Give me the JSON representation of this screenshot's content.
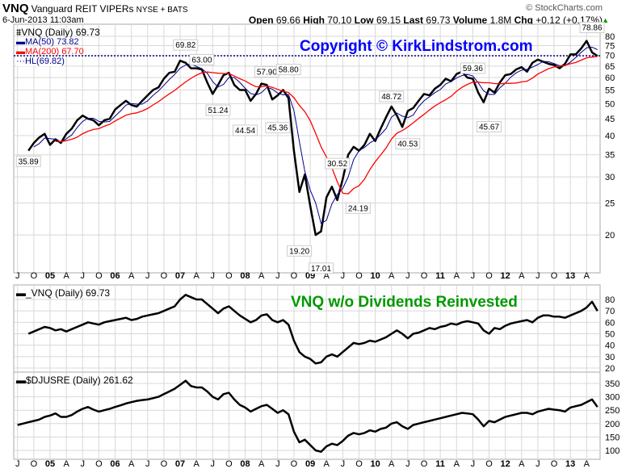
{
  "header": {
    "symbol": "VNQ",
    "name": "Vanguard REIT VIPERs",
    "exchange": "NYSE + BATS",
    "date": "6-Jun-2013 11:03am",
    "source": "© StockCharts.com",
    "quote": {
      "open_label": "Open",
      "open": "69.66",
      "high_label": "High",
      "high": "70.10",
      "low_label": "Low",
      "low": "69.15",
      "last_label": "Last",
      "last": "69.73",
      "volume_label": "Volume",
      "volume": "1.8M",
      "chg_label": "Chg",
      "chg": "+0.12 (+0.17%)"
    }
  },
  "colors": {
    "price": "#000000",
    "ma50": "#00008b",
    "ma200": "#ff0000",
    "hl": "#00008b",
    "watermark": "#0000ff",
    "green": "#009900",
    "grid": "#d8d8d8"
  },
  "chart_data": [
    {
      "type": "line",
      "title": "VNQ (Daily) 69.73",
      "scale": "log",
      "legend": [
        "MA(50) 73.82",
        "MA(200) 67.70",
        "HL(69.82)"
      ],
      "legend_placement": "top-left",
      "watermark": "Copyright © KirkLindstrom.com",
      "hl_value": 69.82,
      "start": "2004-09",
      "values": [
        36,
        38,
        39.5,
        40.5,
        37.5,
        39,
        38,
        40.5,
        42,
        44.5,
        46,
        45,
        44.5,
        43,
        44.5,
        45,
        48,
        49.5,
        51,
        49.5,
        49,
        51,
        53,
        55,
        56,
        59.5,
        62,
        62.5,
        67.5,
        66.5,
        64,
        64,
        63.5,
        58,
        53.5,
        57,
        61,
        62,
        57,
        55,
        55,
        51,
        53.5,
        57.5,
        57,
        51.5,
        53,
        55,
        52,
        36,
        27,
        30.5,
        24.5,
        20,
        20.5,
        26,
        28,
        25.5,
        29.5,
        35,
        37,
        36,
        37.5,
        40.5,
        38.5,
        42,
        45.5,
        49,
        46,
        42.5,
        47.5,
        48.5,
        51,
        53.5,
        53,
        55.5,
        57,
        59.5,
        58.5,
        61.5,
        62.5,
        60,
        59.5,
        54,
        50.5,
        55.5,
        54,
        58,
        61,
        61.5,
        63.5,
        64.5,
        62.5,
        66.5,
        68,
        67,
        66,
        65.5,
        64,
        66,
        70.5,
        70.5,
        73.5,
        77.5,
        71.5,
        69.73
      ],
      "ylim": [
        16,
        82
      ],
      "yticks": [
        20,
        25,
        30,
        35,
        40,
        45,
        50,
        55,
        60,
        65,
        70,
        75,
        80
      ],
      "annotations": [
        {
          "date": "2004-09",
          "value": 35.89,
          "label": "35.89",
          "pos": "below"
        },
        {
          "date": "2007-02",
          "value": 69.82,
          "label": "69.82",
          "pos": "above"
        },
        {
          "date": "2007-05",
          "value": 63.0,
          "label": "63.00",
          "pos": "above"
        },
        {
          "date": "2007-08",
          "value": 51.24,
          "label": "51.24",
          "pos": "below"
        },
        {
          "date": "2008-01",
          "value": 44.54,
          "label": "44.54",
          "pos": "below"
        },
        {
          "date": "2008-05",
          "value": 57.9,
          "label": "57.90",
          "pos": "above"
        },
        {
          "date": "2008-07",
          "value": 45.36,
          "label": "45.36",
          "pos": "below"
        },
        {
          "date": "2008-09",
          "value": 58.8,
          "label": "58.80",
          "pos": "above"
        },
        {
          "date": "2008-11",
          "value": 19.2,
          "label": "19.20",
          "pos": "below"
        },
        {
          "date": "2009-03",
          "value": 17.01,
          "label": "17.01",
          "pos": "below"
        },
        {
          "date": "2009-06",
          "value": 30.52,
          "label": "30.52",
          "pos": "above"
        },
        {
          "date": "2009-07",
          "value": 24.19,
          "label": "24.19",
          "pos": "right"
        },
        {
          "date": "2010-04",
          "value": 48.72,
          "label": "48.72",
          "pos": "above"
        },
        {
          "date": "2010-07",
          "value": 40.53,
          "label": "40.53",
          "pos": "below"
        },
        {
          "date": "2011-07",
          "value": 59.36,
          "label": "59.36",
          "pos": "above"
        },
        {
          "date": "2011-10",
          "value": 45.67,
          "label": "45.67",
          "pos": "below"
        },
        {
          "date": "2013-05",
          "value": 78.86,
          "label": "78.86",
          "pos": "above"
        }
      ]
    },
    {
      "type": "line",
      "title": "_VNQ (Daily) 69.73",
      "annotation": "VNQ w/o Dividends Reinvested",
      "start": "2004-09",
      "values": [
        50,
        52,
        54,
        56,
        55,
        53,
        54,
        52,
        54,
        56,
        58,
        60,
        59,
        58,
        60,
        61,
        62,
        63,
        64,
        62,
        63,
        65,
        66,
        67,
        68,
        70,
        72,
        74,
        80,
        84,
        82,
        80,
        80,
        76,
        72,
        68,
        72,
        74,
        70,
        66,
        63,
        60,
        62,
        66,
        67,
        62,
        60,
        62,
        58,
        44,
        34,
        30,
        28,
        24,
        25,
        30,
        32,
        30,
        34,
        38,
        42,
        41,
        42,
        44,
        43,
        45,
        47,
        50,
        53,
        50,
        46,
        50,
        51,
        53,
        55,
        54,
        56,
        57,
        59,
        58,
        60,
        61,
        60,
        59,
        53,
        50,
        55,
        54,
        57,
        59,
        60,
        61,
        62,
        60,
        64,
        66,
        66,
        65,
        65,
        64,
        66,
        68,
        70,
        73,
        78,
        70
      ],
      "ylim": [
        18,
        87
      ],
      "yticks": [
        20,
        30,
        40,
        50,
        60,
        70,
        80
      ]
    },
    {
      "type": "line",
      "title": "$DJUSRE (Daily) 261.62",
      "start": "2004-07",
      "values": [
        195,
        200,
        205,
        210,
        215,
        225,
        230,
        238,
        225,
        225,
        232,
        245,
        255,
        262,
        252,
        245,
        250,
        255,
        262,
        268,
        275,
        280,
        285,
        288,
        290,
        295,
        300,
        310,
        320,
        330,
        345,
        360,
        340,
        335,
        335,
        320,
        300,
        290,
        310,
        315,
        290,
        270,
        260,
        245,
        255,
        265,
        270,
        255,
        240,
        250,
        235,
        170,
        130,
        140,
        120,
        100,
        95,
        115,
        125,
        120,
        135,
        155,
        165,
        160,
        165,
        175,
        170,
        180,
        185,
        200,
        205,
        190,
        180,
        195,
        200,
        205,
        210,
        215,
        220,
        225,
        230,
        235,
        240,
        238,
        235,
        215,
        190,
        210,
        205,
        215,
        225,
        230,
        235,
        240,
        240,
        235,
        245,
        250,
        255,
        252,
        250,
        245,
        260,
        265,
        270,
        280,
        290,
        262
      ],
      "ylim": [
        70,
        390
      ],
      "yticks": [
        100,
        150,
        200,
        250,
        300,
        350
      ]
    }
  ],
  "xaxis": {
    "start": "2004-07",
    "ticks": [
      "J",
      "O",
      "05",
      "A",
      "J",
      "O",
      "06",
      "A",
      "J",
      "O",
      "07",
      "A",
      "J",
      "O",
      "08",
      "A",
      "J",
      "O",
      "09",
      "A",
      "J",
      "O",
      "10",
      "A",
      "J",
      "O",
      "11",
      "A",
      "J",
      "O",
      "12",
      "A",
      "J",
      "O",
      "13",
      "A"
    ]
  }
}
